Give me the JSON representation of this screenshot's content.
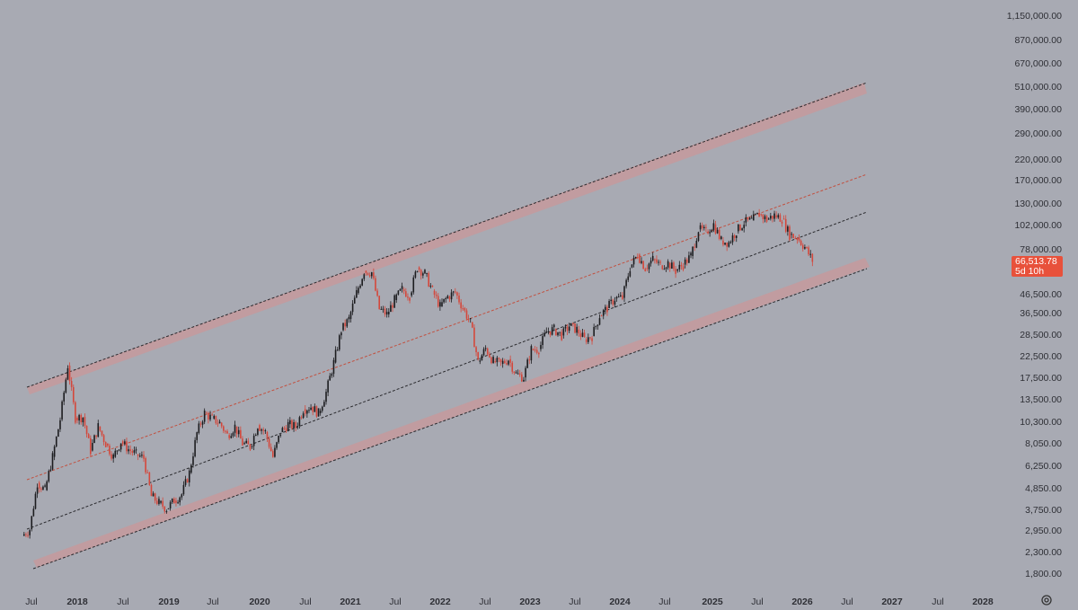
{
  "chart_data": {
    "type": "candlestick",
    "y_scale": "log",
    "y_ticks": [
      "1,150,000.00",
      "870,000.00",
      "670,000.00",
      "510,000.00",
      "390,000.00",
      "290,000.00",
      "220,000.00",
      "170,000.00",
      "130,000.00",
      "102,000.00",
      "78,000.00",
      "46,500.00",
      "36,500.00",
      "28,500.00",
      "22,500.00",
      "17,500.00",
      "13,500.00",
      "10,300.00",
      "8,050.00",
      "6,250.00",
      "4,850.00",
      "3,750.00",
      "2,950.00",
      "2,300.00",
      "1,800.00"
    ],
    "x_ticks": [
      "Jul",
      "2018",
      "Jul",
      "2019",
      "Jul",
      "2020",
      "Jul",
      "2021",
      "Jul",
      "2022",
      "Jul",
      "2023",
      "Jul",
      "2024",
      "Jul",
      "2025",
      "Jul",
      "2026",
      "Jul",
      "2027",
      "Jul",
      "2028"
    ],
    "last_price": "66,513.78",
    "countdown": "5d 10h",
    "series": [
      {
        "name": "",
        "values": [
          [
            "2017-06",
            2500
          ],
          [
            "2017-07",
            2700
          ],
          [
            "2017-08",
            4700
          ],
          [
            "2017-09",
            4300
          ],
          [
            "2017-10",
            6400
          ],
          [
            "2017-11",
            10000
          ],
          [
            "2017-12",
            19000
          ],
          [
            "2018-01",
            10200
          ],
          [
            "2018-02",
            10300
          ],
          [
            "2018-03",
            6900
          ],
          [
            "2018-04",
            9200
          ],
          [
            "2018-05",
            7500
          ],
          [
            "2018-06",
            6400
          ],
          [
            "2018-07",
            7700
          ],
          [
            "2018-08",
            7000
          ],
          [
            "2018-09",
            6600
          ],
          [
            "2018-10",
            6300
          ],
          [
            "2018-11",
            4000
          ],
          [
            "2018-12",
            3700
          ],
          [
            "2019-01",
            3450
          ],
          [
            "2019-02",
            3800
          ],
          [
            "2019-03",
            4100
          ],
          [
            "2019-04",
            5300
          ],
          [
            "2019-05",
            8500
          ],
          [
            "2019-06",
            10800
          ],
          [
            "2019-07",
            10100
          ],
          [
            "2019-08",
            9600
          ],
          [
            "2019-09",
            8300
          ],
          [
            "2019-10",
            9200
          ],
          [
            "2019-11",
            7500
          ],
          [
            "2019-12",
            7200
          ],
          [
            "2020-01",
            9350
          ],
          [
            "2020-02",
            8600
          ],
          [
            "2020-03",
            6400
          ],
          [
            "2020-04",
            8600
          ],
          [
            "2020-05",
            9450
          ],
          [
            "2020-06",
            9150
          ],
          [
            "2020-07",
            11300
          ],
          [
            "2020-08",
            11650
          ],
          [
            "2020-09",
            10780
          ],
          [
            "2020-10",
            13800
          ],
          [
            "2020-11",
            19700
          ],
          [
            "2020-12",
            29000
          ],
          [
            "2021-01",
            33100
          ],
          [
            "2021-02",
            45100
          ],
          [
            "2021-03",
            58800
          ],
          [
            "2021-04",
            57700
          ],
          [
            "2021-05",
            37300
          ],
          [
            "2021-06",
            35000
          ],
          [
            "2021-07",
            41500
          ],
          [
            "2021-08",
            47100
          ],
          [
            "2021-09",
            43800
          ],
          [
            "2021-10",
            61300
          ],
          [
            "2021-11",
            57000
          ],
          [
            "2021-12",
            46300
          ],
          [
            "2022-01",
            38500
          ],
          [
            "2022-02",
            43200
          ],
          [
            "2022-03",
            45500
          ],
          [
            "2022-04",
            37700
          ],
          [
            "2022-05",
            31800
          ],
          [
            "2022-06",
            19900
          ],
          [
            "2022-07",
            23300
          ],
          [
            "2022-08",
            20000
          ],
          [
            "2022-09",
            19400
          ],
          [
            "2022-10",
            20500
          ],
          [
            "2022-11",
            17200
          ],
          [
            "2022-12",
            16500
          ],
          [
            "2023-01",
            23100
          ],
          [
            "2023-02",
            23100
          ],
          [
            "2023-03",
            28500
          ],
          [
            "2023-04",
            29300
          ],
          [
            "2023-05",
            27200
          ],
          [
            "2023-06",
            30500
          ],
          [
            "2023-07",
            29200
          ],
          [
            "2023-08",
            26000
          ],
          [
            "2023-09",
            27000
          ],
          [
            "2023-10",
            34500
          ],
          [
            "2023-11",
            37700
          ],
          [
            "2023-12",
            42300
          ],
          [
            "2024-01",
            42600
          ],
          [
            "2024-02",
            61200
          ],
          [
            "2024-03",
            71300
          ],
          [
            "2024-04",
            60700
          ],
          [
            "2024-05",
            67500
          ],
          [
            "2024-06",
            62700
          ],
          [
            "2024-07",
            64600
          ],
          [
            "2024-08",
            58900
          ],
          [
            "2024-09",
            63300
          ],
          [
            "2024-10",
            70200
          ],
          [
            "2024-11",
            96400
          ],
          [
            "2024-12",
            93400
          ],
          [
            "2025-01",
            102400
          ],
          [
            "2025-02",
            84300
          ],
          [
            "2025-03",
            82500
          ],
          [
            "2025-04",
            94200
          ],
          [
            "2025-05",
            104600
          ],
          [
            "2025-06",
            107100
          ],
          [
            "2025-07",
            115700
          ],
          [
            "2025-08",
            108200
          ],
          [
            "2025-09",
            114000
          ],
          [
            "2025-10",
            109500
          ],
          [
            "2025-11",
            90400
          ],
          [
            "2025-12",
            87500
          ],
          [
            "2026-01",
            78000
          ],
          [
            "2026-02",
            66513.78
          ]
        ]
      }
    ],
    "channel_lines": [
      "upper",
      "upper-mid",
      "mid",
      "lower"
    ]
  },
  "colors": {
    "background": "#a8aab3",
    "up": "#1c1c1f",
    "down": "#d4473b",
    "band": "#c59a9c",
    "badge": "#e8513b"
  },
  "icons": {
    "settings": "gear-icon"
  }
}
